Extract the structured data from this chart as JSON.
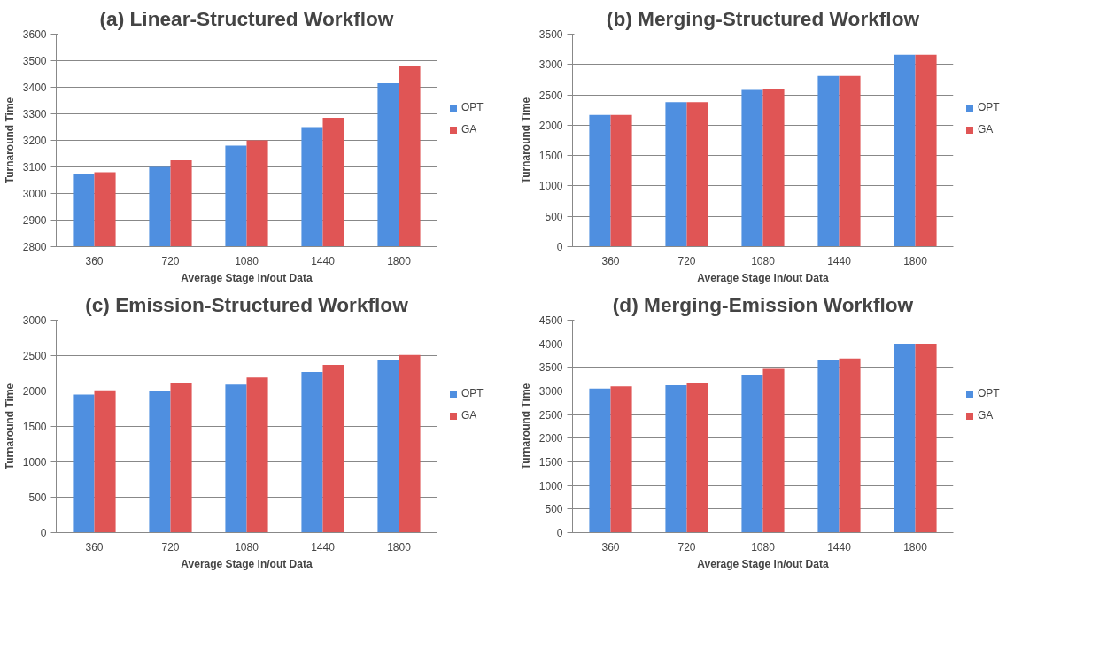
{
  "chart_data": [
    {
      "type": "bar",
      "title": "(a) Linear-Structured Workflow",
      "xlabel": "Average Stage in/out Data",
      "ylabel": "Turnaround Time",
      "categories": [
        "360",
        "720",
        "1080",
        "1440",
        "1800"
      ],
      "ylim": [
        2800,
        3600
      ],
      "yticks": [
        2800,
        2900,
        3000,
        3100,
        3200,
        3300,
        3400,
        3500,
        3600
      ],
      "grid": "y",
      "legend": "right",
      "series": [
        {
          "name": "OPT",
          "color": "#4f8fe0",
          "values": [
            3075,
            3100,
            3180,
            3250,
            3415
          ]
        },
        {
          "name": "GA",
          "color": "#e05555",
          "values": [
            3080,
            3125,
            3200,
            3285,
            3480
          ]
        }
      ]
    },
    {
      "type": "bar",
      "title": "(b) Merging-Structured Workflow",
      "xlabel": "Average Stage in/out Data",
      "ylabel": "Turnaround Time",
      "categories": [
        "360",
        "720",
        "1080",
        "1440",
        "1800"
      ],
      "ylim": [
        0,
        3500
      ],
      "yticks": [
        0,
        500,
        1000,
        1500,
        2000,
        2500,
        3000,
        3500
      ],
      "grid": "y",
      "legend": "right",
      "series": [
        {
          "name": "OPT",
          "color": "#4f8fe0",
          "values": [
            2170,
            2380,
            2580,
            2810,
            3160
          ]
        },
        {
          "name": "GA",
          "color": "#e05555",
          "values": [
            2170,
            2380,
            2590,
            2810,
            3160
          ]
        }
      ]
    },
    {
      "type": "bar",
      "title": "(c) Emission-Structured Workflow",
      "xlabel": "Average Stage in/out Data",
      "ylabel": "Turnaround Time",
      "categories": [
        "360",
        "720",
        "1080",
        "1440",
        "1800"
      ],
      "ylim": [
        0,
        3000
      ],
      "yticks": [
        0,
        500,
        1000,
        1500,
        2000,
        2500,
        3000
      ],
      "grid": "y",
      "legend": "right",
      "series": [
        {
          "name": "OPT",
          "color": "#4f8fe0",
          "values": [
            1950,
            2000,
            2090,
            2270,
            2430
          ]
        },
        {
          "name": "GA",
          "color": "#e05555",
          "values": [
            2010,
            2110,
            2190,
            2370,
            2510
          ]
        }
      ]
    },
    {
      "type": "bar",
      "title": "(d) Merging-Emission Workflow",
      "xlabel": "Average Stage in/out Data",
      "ylabel": "Turnaround Time",
      "categories": [
        "360",
        "720",
        "1080",
        "1440",
        "1800"
      ],
      "ylim": [
        0,
        4500
      ],
      "yticks": [
        0,
        500,
        1000,
        1500,
        2000,
        2500,
        3000,
        3500,
        4000,
        4500
      ],
      "grid": "y",
      "legend": "right",
      "series": [
        {
          "name": "OPT",
          "color": "#4f8fe0",
          "values": [
            3050,
            3120,
            3330,
            3650,
            3990
          ]
        },
        {
          "name": "GA",
          "color": "#e05555",
          "values": [
            3100,
            3180,
            3470,
            3690,
            3990
          ]
        }
      ]
    }
  ]
}
